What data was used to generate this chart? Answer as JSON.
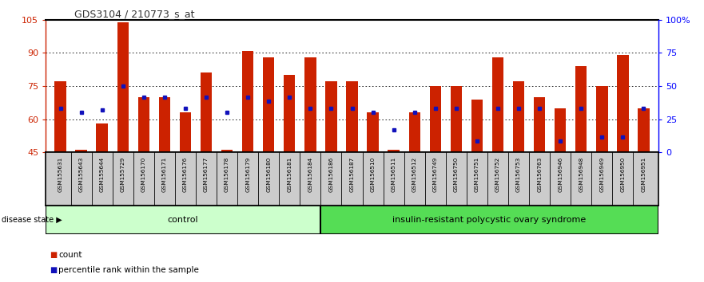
{
  "title": "GDS3104 / 210773_s_at",
  "samples": [
    "GSM155631",
    "GSM155643",
    "GSM155644",
    "GSM155729",
    "GSM156170",
    "GSM156171",
    "GSM156176",
    "GSM156177",
    "GSM156178",
    "GSM156179",
    "GSM156180",
    "GSM156181",
    "GSM156184",
    "GSM156186",
    "GSM156187",
    "GSM156510",
    "GSM156511",
    "GSM156512",
    "GSM156749",
    "GSM156750",
    "GSM156751",
    "GSM156752",
    "GSM156753",
    "GSM156763",
    "GSM156946",
    "GSM156948",
    "GSM156949",
    "GSM156950",
    "GSM156951"
  ],
  "bar_heights": [
    77,
    46,
    58,
    104,
    70,
    70,
    63,
    81,
    46,
    91,
    88,
    80,
    88,
    77,
    77,
    63,
    46,
    63,
    75,
    75,
    69,
    88,
    77,
    70,
    65,
    84,
    75,
    89,
    65
  ],
  "blue_dots": [
    65,
    63,
    64,
    75,
    70,
    70,
    65,
    70,
    63,
    70,
    68,
    70,
    65,
    65,
    65,
    63,
    55,
    63,
    65,
    65,
    50,
    65,
    65,
    65,
    50,
    65,
    52,
    52,
    65
  ],
  "control_count": 13,
  "disease_count": 16,
  "control_label": "control",
  "disease_label": "insulin-resistant polycystic ovary syndrome",
  "disease_state_label": "disease state",
  "legend_count": "count",
  "legend_percentile": "percentile rank within the sample",
  "ylim_left": [
    45,
    105
  ],
  "ylim_right": [
    0,
    100
  ],
  "yticks_left": [
    45,
    60,
    75,
    90,
    105
  ],
  "ytick_labels_left": [
    "45",
    "60",
    "75",
    "90",
    "105"
  ],
  "yticks_right": [
    0,
    25,
    50,
    75,
    100
  ],
  "ytick_labels_right": [
    "0",
    "25",
    "50",
    "75",
    "100%"
  ],
  "bar_color": "#CC2200",
  "dot_color": "#1111BB",
  "bg_color": "#FFFFFF",
  "plot_bg": "#FFFFFF",
  "control_bg": "#CCFFCC",
  "disease_bg": "#55DD55",
  "xticklabel_bg": "#CCCCCC",
  "title_color": "#333333",
  "bar_width": 0.55
}
